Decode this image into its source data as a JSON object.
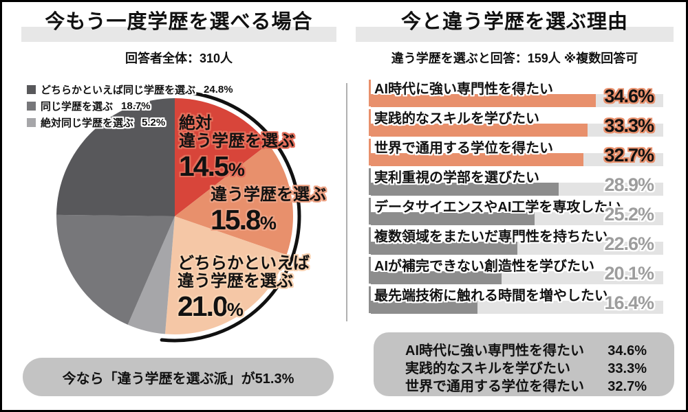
{
  "left_panel": {
    "title": "今もう一度学歴を選べる場合",
    "subtitle": "回答者全体：310人",
    "legend": [
      {
        "label": "どちらかといえば同じ学歴を選ぶ",
        "value": 24.8,
        "swatch": "#58585b"
      },
      {
        "label": "同じ学歴を選ぶ",
        "value": 18.7,
        "swatch": "#77777a"
      },
      {
        "label": "絶対同じ学歴を選ぶ",
        "value": 5.2,
        "swatch": "#a6a6a9"
      }
    ],
    "callout": "今なら「違う学歴を選ぶ派」が51.3%"
  },
  "right_panel": {
    "title": "今と違う学歴を選ぶ理由",
    "subtitle": "違う学歴を選ぶと回答：159人 ※複数回答可",
    "summary": [
      {
        "label": "AI時代に強い専門性を得たい",
        "value": 34.6
      },
      {
        "label": "実践的なスキルを学びたい",
        "value": 33.3
      },
      {
        "label": "世界で通用する学位を得たい",
        "value": 32.7
      }
    ]
  },
  "colors": {
    "accent_red": "#d8453a",
    "accent_salmon": "#e8906c",
    "accent_peach": "#f5c7a6",
    "gray_dark": "#58585b",
    "gray_mid": "#77777a",
    "gray_light": "#a6a6a9",
    "bar_gray": "#8d8d8d",
    "bar_track": "#e3e3e3",
    "box_gray": "#c3c3c3",
    "band_gray": "#e7e7e7",
    "divider_gray": "#b0b0b0",
    "arc_black": "#111111",
    "gray_value_text": "#9d9d9d",
    "halo_white": "#ffffff"
  },
  "chart_data": [
    {
      "type": "pie",
      "title": "今もう一度学歴を選べる場合",
      "respondents_label": "回答者全体：310人",
      "unit": "%",
      "start": "top",
      "direction": "clockwise",
      "slices": [
        {
          "label": "絶対違う学歴を選ぶ",
          "display_lines": [
            "絶対",
            "違う学歴を選ぶ"
          ],
          "value": 14.5,
          "color": "#d8453a",
          "halo": "#e4705c",
          "group": "different"
        },
        {
          "label": "違う学歴を選ぶ",
          "display_lines": [
            "違う学歴を選ぶ"
          ],
          "value": 15.8,
          "color": "#e8906c",
          "halo": "#eda284",
          "group": "different"
        },
        {
          "label": "どちらかといえば違う学歴を選ぶ",
          "display_lines": [
            "どちらかといえば",
            "違う学歴を選ぶ"
          ],
          "value": 21.0,
          "color": "#f5c7a6",
          "halo": "#f8d2b2",
          "group": "different"
        },
        {
          "label": "絶対同じ学歴を選ぶ",
          "value": 5.2,
          "color": "#a6a6a9",
          "group": "same"
        },
        {
          "label": "同じ学歴を選ぶ",
          "value": 18.7,
          "color": "#77777a",
          "group": "same"
        },
        {
          "label": "どちらかといえば同じ学歴を選ぶ",
          "value": 24.8,
          "color": "#58585b",
          "group": "same"
        }
      ],
      "highlight_arc": {
        "from_deg": 0,
        "to_deg": 186,
        "note": "different-group total 51.3%"
      },
      "callout": "今なら「違う学歴を選ぶ派」が51.3%"
    },
    {
      "type": "bar",
      "orientation": "horizontal",
      "title": "今と違う学歴を選ぶ理由",
      "respondents_label": "違う学歴を選ぶと回答：159人 ※複数回答可",
      "categories": [
        "AI時代に強い専門性を得たい",
        "実践的なスキルを学びたい",
        "世界で通用する学位を得たい",
        "実利重視の学部を選びたい",
        "データサイエンスやAI工学を専攻したい",
        "複数領域をまたいだ専門性を持ちたい",
        "AIが補完できない創造性を学びたい",
        "最先端技術に触れる時間を増やしたい"
      ],
      "values": [
        34.6,
        33.3,
        32.7,
        28.9,
        25.2,
        22.6,
        20.1,
        16.4
      ],
      "unit": "%",
      "xlim": [
        0,
        45
      ],
      "grid": false,
      "legend": false,
      "highlight_count": 3
    }
  ]
}
